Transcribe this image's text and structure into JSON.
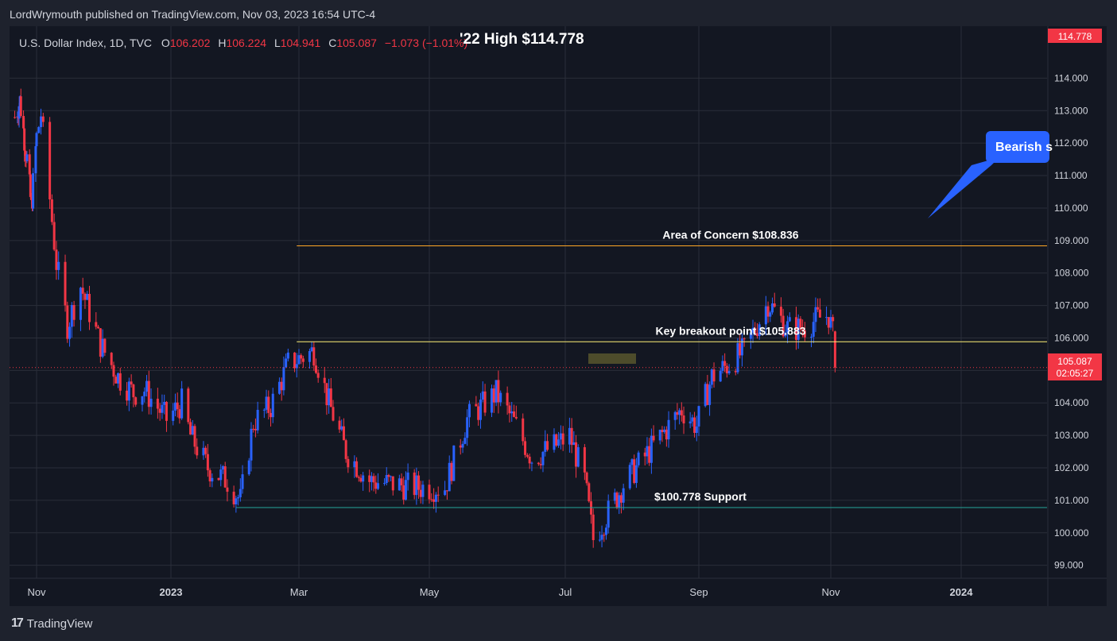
{
  "header": {
    "published": "LordWrymouth published on TradingView.com, Nov 03, 2023 16:54 UTC-4"
  },
  "legend": {
    "symbol": "U.S. Dollar Index, 1D, TVC",
    "o_label": "O",
    "o_value": "106.202",
    "h_label": "H",
    "h_value": "106.224",
    "l_label": "L",
    "l_value": "104.941",
    "c_label": "C",
    "c_value": "105.087",
    "change": "−1.073 (−1.01%)"
  },
  "colors": {
    "up": "#2962ff",
    "down": "#f23645",
    "bg": "#131722",
    "grid": "#2a2e39",
    "concern_line": "#ffa726",
    "breakout_line": "#fff176",
    "support_line": "#26a69a"
  },
  "chart_data": {
    "type": "candlestick",
    "title": "U.S. Dollar Index, 1D, TVC",
    "ylim": [
      98.6,
      115.6
    ],
    "y_ticks": [
      "114.000",
      "113.000",
      "112.000",
      "111.000",
      "110.000",
      "109.000",
      "108.000",
      "107.000",
      "106.000",
      "105.000",
      "104.000",
      "103.000",
      "102.000",
      "101.000",
      "100.000",
      "99.000"
    ],
    "x_ticks": [
      "Nov",
      "2023",
      "Mar",
      "May",
      "Jul",
      "Sep",
      "Nov",
      "2024"
    ],
    "price_path": [
      {
        "date": "2022-10-07",
        "close": 112.8
      },
      {
        "date": "2022-10-13",
        "close": 113.3
      },
      {
        "date": "2022-10-21",
        "close": 111.5
      },
      {
        "date": "2022-10-26",
        "close": 110.0
      },
      {
        "date": "2022-11-03",
        "close": 112.9
      },
      {
        "date": "2022-11-10",
        "close": 108.3
      },
      {
        "date": "2022-11-15",
        "close": 106.4
      },
      {
        "date": "2022-11-21",
        "close": 107.6
      },
      {
        "date": "2022-11-30",
        "close": 105.8
      },
      {
        "date": "2022-12-08",
        "close": 104.8
      },
      {
        "date": "2022-12-15",
        "close": 104.3
      },
      {
        "date": "2022-12-20",
        "close": 104.4
      },
      {
        "date": "2022-12-30",
        "close": 103.5
      },
      {
        "date": "2023-01-06",
        "close": 104.0
      },
      {
        "date": "2023-01-10",
        "close": 103.0
      },
      {
        "date": "2023-01-18",
        "close": 102.0
      },
      {
        "date": "2023-01-27",
        "close": 101.6
      },
      {
        "date": "2023-02-02",
        "close": 101.0
      },
      {
        "date": "2023-02-08",
        "close": 103.4
      },
      {
        "date": "2023-02-16",
        "close": 103.9
      },
      {
        "date": "2023-02-24",
        "close": 105.2
      },
      {
        "date": "2023-03-08",
        "close": 105.6
      },
      {
        "date": "2023-03-15",
        "close": 104.0
      },
      {
        "date": "2023-03-23",
        "close": 102.5
      },
      {
        "date": "2023-04-03",
        "close": 101.6
      },
      {
        "date": "2023-04-14",
        "close": 101.5
      },
      {
        "date": "2023-04-25",
        "close": 101.4
      },
      {
        "date": "2023-05-08",
        "close": 101.4
      },
      {
        "date": "2023-05-18",
        "close": 103.5
      },
      {
        "date": "2023-05-31",
        "close": 104.3
      },
      {
        "date": "2023-06-08",
        "close": 103.4
      },
      {
        "date": "2023-06-16",
        "close": 102.3
      },
      {
        "date": "2023-06-27",
        "close": 102.7
      },
      {
        "date": "2023-07-03",
        "close": 103.0
      },
      {
        "date": "2023-07-10",
        "close": 101.6
      },
      {
        "date": "2023-07-14",
        "close": 99.8
      },
      {
        "date": "2023-07-20",
        "close": 100.5
      },
      {
        "date": "2023-07-28",
        "close": 101.5
      },
      {
        "date": "2023-08-10",
        "close": 102.6
      },
      {
        "date": "2023-08-24",
        "close": 103.8
      },
      {
        "date": "2023-08-31",
        "close": 103.3
      },
      {
        "date": "2023-09-07",
        "close": 104.8
      },
      {
        "date": "2023-09-15",
        "close": 105.2
      },
      {
        "date": "2023-09-22",
        "close": 105.6
      },
      {
        "date": "2023-10-03",
        "close": 107.1
      },
      {
        "date": "2023-10-12",
        "close": 106.3
      },
      {
        "date": "2023-10-19",
        "close": 106.3
      },
      {
        "date": "2023-10-26",
        "close": 106.6
      },
      {
        "date": "2023-10-31",
        "close": 106.7
      },
      {
        "date": "2023-11-02",
        "close": 106.1
      },
      {
        "date": "2023-11-03",
        "close": 105.087
      }
    ],
    "levels": [
      {
        "label": "Area of Concern $108.836",
        "value": 108.836,
        "from": "2023-02-28",
        "color": "#ffa726"
      },
      {
        "label": "Key breakout point $105.883",
        "value": 105.883,
        "from": "2023-02-28",
        "color": "#fff176"
      },
      {
        "label": "$100.778 Support",
        "value": 100.778,
        "from": "2023-01-31",
        "color": "#26a69a"
      }
    ],
    "annotations": [
      {
        "text": "'22 High $114.778"
      },
      {
        "text": "Bearish s"
      }
    ],
    "last_price": {
      "value": "105.087",
      "countdown": "02:05:27"
    },
    "high_marker": {
      "value": "114.778"
    }
  },
  "branding": {
    "name": "TradingView"
  }
}
